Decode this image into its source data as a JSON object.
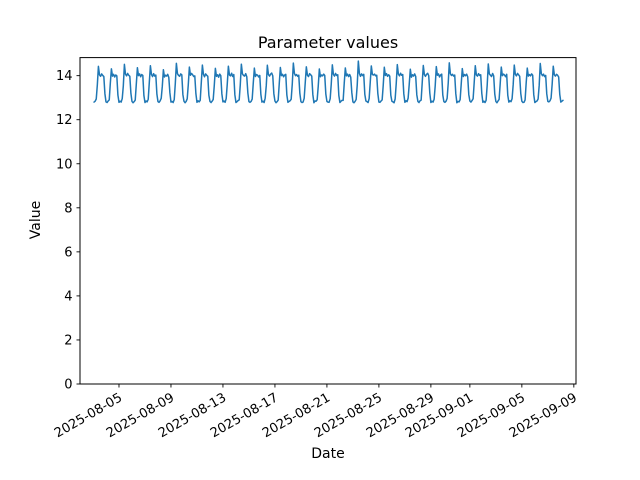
{
  "figure": {
    "title": "Parameter values",
    "xlabel": "Date",
    "ylabel": "Value"
  },
  "chart_data": {
    "type": "line",
    "title": "Parameter values",
    "xlabel": "Date",
    "ylabel": "Value",
    "grid": false,
    "legend": "none",
    "line_color": "#1f77b4",
    "background": "#ffffff",
    "ylim": [
      0,
      14.82
    ],
    "yticks": [
      0,
      2,
      4,
      6,
      8,
      10,
      12,
      14
    ],
    "xlim": [
      "2025-08-02T00:00:00Z",
      "2025-09-09T04:00:00Z"
    ],
    "xticks": [
      "2025-08-05",
      "2025-08-09",
      "2025-08-13",
      "2025-08-17",
      "2025-08-21",
      "2025-08-25",
      "2025-08-29",
      "2025-09-01",
      "2025-09-05",
      "2025-09-09"
    ],
    "series": [
      {
        "x_start": "2025-08-03T02:00:00Z",
        "x_step_hours": 2,
        "values": [
          12.8,
          12.84,
          12.94,
          13.58,
          14.42,
          14.04,
          13.97,
          14.08,
          14.01,
          13.96,
          13.18,
          12.81,
          12.78,
          12.85,
          12.9,
          13.66,
          14.31,
          13.98,
          14.06,
          13.94,
          14.03,
          13.99,
          13.12,
          12.79,
          12.84,
          12.8,
          12.96,
          13.54,
          14.51,
          14.07,
          13.99,
          14.1,
          14.02,
          13.97,
          13.2,
          12.83,
          12.77,
          12.82,
          12.89,
          13.62,
          14.36,
          14.0,
          14.08,
          13.95,
          14.05,
          14.01,
          13.1,
          12.78,
          12.85,
          12.81,
          12.93,
          13.7,
          14.45,
          14.05,
          13.96,
          14.09,
          13.98,
          14.03,
          13.16,
          12.82,
          12.79,
          12.86,
          12.97,
          13.52,
          14.27,
          13.94,
          14.02,
          13.98,
          14.06,
          13.92,
          13.22,
          12.8,
          12.83,
          12.78,
          12.91,
          13.64,
          14.56,
          14.09,
          14.01,
          13.97,
          14.08,
          14.04,
          13.14,
          12.84,
          12.77,
          12.83,
          12.95,
          13.6,
          14.39,
          14.02,
          14.1,
          14.04,
          13.96,
          13.99,
          13.19,
          12.79,
          12.86,
          12.81,
          12.88,
          13.68,
          14.48,
          14.06,
          13.95,
          14.08,
          14.02,
          13.97,
          13.11,
          12.83,
          12.78,
          12.84,
          12.92,
          13.56,
          14.33,
          13.97,
          14.04,
          13.93,
          14.07,
          14.0,
          13.17,
          12.81,
          12.85,
          12.79,
          12.96,
          13.63,
          14.43,
          14.03,
          13.99,
          14.11,
          13.96,
          14.05,
          13.13,
          12.78,
          12.82,
          12.87,
          12.9,
          13.59,
          14.52,
          14.08,
          14.01,
          13.98,
          14.09,
          13.95,
          13.21,
          12.82,
          12.79,
          12.83,
          12.94,
          13.67,
          14.34,
          13.96,
          14.05,
          14.02,
          13.94,
          14.01,
          13.15,
          12.8,
          12.84,
          12.78,
          12.98,
          13.55,
          14.47,
          14.05,
          13.98,
          14.07,
          14.12,
          13.99,
          13.18,
          12.85,
          12.77,
          12.82,
          12.89,
          13.65,
          14.37,
          14.0,
          14.06,
          13.95,
          14.03,
          14.06,
          13.12,
          12.79,
          12.83,
          12.86,
          12.93,
          13.61,
          14.57,
          14.1,
          14.0,
          14.05,
          13.97,
          14.02,
          13.2,
          12.82,
          12.78,
          12.8,
          12.97,
          13.69,
          14.4,
          14.02,
          13.96,
          14.09,
          14.04,
          13.98,
          13.14,
          12.77,
          12.85,
          12.84,
          12.91,
          13.53,
          14.3,
          13.95,
          14.03,
          13.99,
          14.07,
          14.01,
          13.16,
          12.83,
          12.8,
          12.79,
          12.95,
          13.62,
          14.49,
          14.06,
          13.98,
          14.1,
          14.01,
          14.04,
          13.1,
          12.78,
          12.84,
          12.88,
          12.88,
          13.66,
          14.35,
          13.99,
          14.07,
          13.96,
          14.05,
          13.93,
          13.22,
          12.81,
          12.77,
          12.83,
          12.92,
          13.58,
          14.66,
          14.1,
          13.97,
          14.08,
          14.0,
          14.06,
          13.15,
          12.85,
          12.82,
          12.78,
          12.96,
          13.7,
          14.44,
          14.05,
          14.03,
          14.07,
          13.99,
          14.02,
          13.19,
          12.8,
          12.79,
          12.85,
          12.9,
          13.56,
          14.38,
          14.01,
          14.09,
          13.97,
          14.04,
          13.98,
          13.11,
          12.84,
          12.81,
          12.77,
          12.94,
          13.64,
          14.5,
          14.07,
          13.99,
          14.11,
          14.02,
          14.05,
          13.17,
          12.79,
          12.86,
          12.82,
          12.98,
          13.6,
          14.29,
          13.93,
          14.04,
          13.98,
          14.08,
          13.96,
          13.13,
          12.83,
          12.78,
          12.86,
          12.89,
          13.68,
          14.46,
          14.05,
          13.97,
          14.06,
          14.11,
          14.0,
          13.21,
          12.78,
          12.84,
          12.8,
          12.93,
          13.54,
          14.41,
          14.02,
          14.08,
          13.94,
          14.03,
          14.07,
          13.12,
          12.82,
          12.79,
          12.84,
          12.97,
          13.65,
          14.58,
          14.09,
          14.01,
          14.06,
          13.98,
          14.03,
          13.18,
          12.77,
          12.83,
          12.81,
          12.91,
          13.61,
          14.32,
          13.96,
          14.05,
          14.0,
          14.07,
          13.95,
          13.14,
          12.85,
          12.8,
          12.87,
          12.95,
          13.69,
          14.45,
          14.03,
          13.98,
          14.09,
          14.01,
          14.04,
          13.2,
          12.79,
          12.84,
          12.78,
          12.88,
          13.57,
          14.53,
          14.08,
          14.02,
          13.96,
          14.1,
          13.99,
          13.16,
          12.83,
          12.77,
          12.85,
          12.92,
          13.63,
          14.39,
          14.0,
          14.07,
          14.03,
          13.95,
          14.06,
          13.11,
          12.8,
          12.86,
          12.82,
          12.96,
          13.59,
          14.48,
          14.06,
          13.99,
          14.1,
          14.04,
          13.97,
          13.19,
          12.84,
          12.78,
          12.79,
          12.9,
          13.67,
          14.34,
          13.98,
          14.05,
          13.99,
          14.08,
          14.02,
          13.13,
          12.78,
          12.82,
          12.85,
          12.94,
          13.55,
          14.55,
          14.09,
          14.0,
          14.07,
          13.96,
          14.01,
          13.17,
          12.83,
          12.81,
          12.86,
          12.98,
          13.62,
          14.43,
          14.04,
          13.98,
          14.06,
          14.02,
          13.94,
          13.15,
          12.8,
          12.84,
          12.88
        ]
      }
    ]
  }
}
